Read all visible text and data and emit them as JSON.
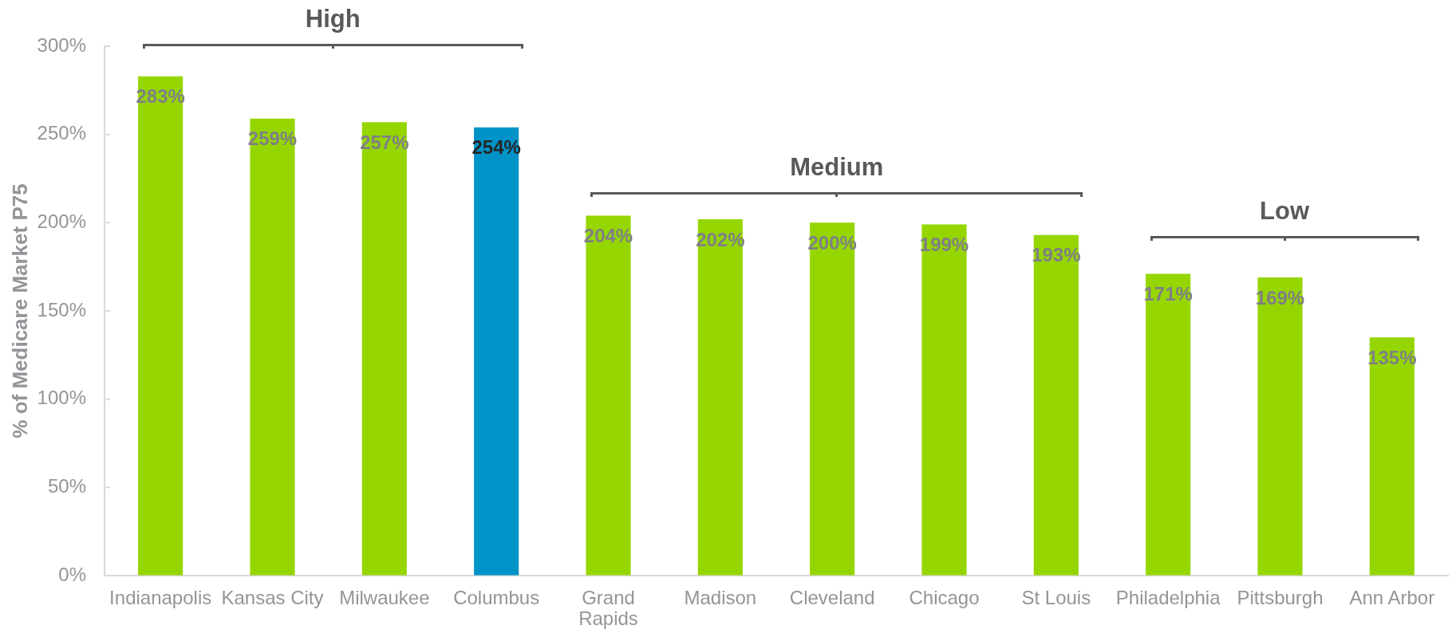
{
  "chart_data": {
    "type": "bar",
    "ylabel": "% of Medicare Market P75",
    "categories": [
      "Indianapolis",
      "Kansas City",
      "Milwaukee",
      "Columbus",
      "Grand Rapids",
      "Madison",
      "Cleveland",
      "Chicago",
      "St Louis",
      "Philadelphia",
      "Pittsburgh",
      "Ann Arbor"
    ],
    "values": [
      283,
      259,
      257,
      254,
      204,
      202,
      200,
      199,
      193,
      171,
      169,
      135
    ],
    "colors": [
      "#96d600",
      "#96d600",
      "#96d600",
      "#0093c8",
      "#96d600",
      "#96d600",
      "#96d600",
      "#96d600",
      "#96d600",
      "#96d600",
      "#96d600",
      "#96d600"
    ],
    "value_labels": [
      "283%",
      "259%",
      "257%",
      "254%",
      "204%",
      "202%",
      "200%",
      "199%",
      "193%",
      "171%",
      "169%",
      "135%"
    ],
    "ylim": [
      0,
      300
    ],
    "yticks": [
      {
        "value": 0,
        "label": "0%"
      },
      {
        "value": 50,
        "label": "50%"
      },
      {
        "value": 100,
        "label": "100%"
      },
      {
        "value": 150,
        "label": "150%"
      },
      {
        "value": 200,
        "label": "200%"
      },
      {
        "value": 250,
        "label": "250%"
      },
      {
        "value": 300,
        "label": "300%"
      }
    ],
    "annotations": [
      "High",
      "Medium",
      "Low"
    ]
  }
}
